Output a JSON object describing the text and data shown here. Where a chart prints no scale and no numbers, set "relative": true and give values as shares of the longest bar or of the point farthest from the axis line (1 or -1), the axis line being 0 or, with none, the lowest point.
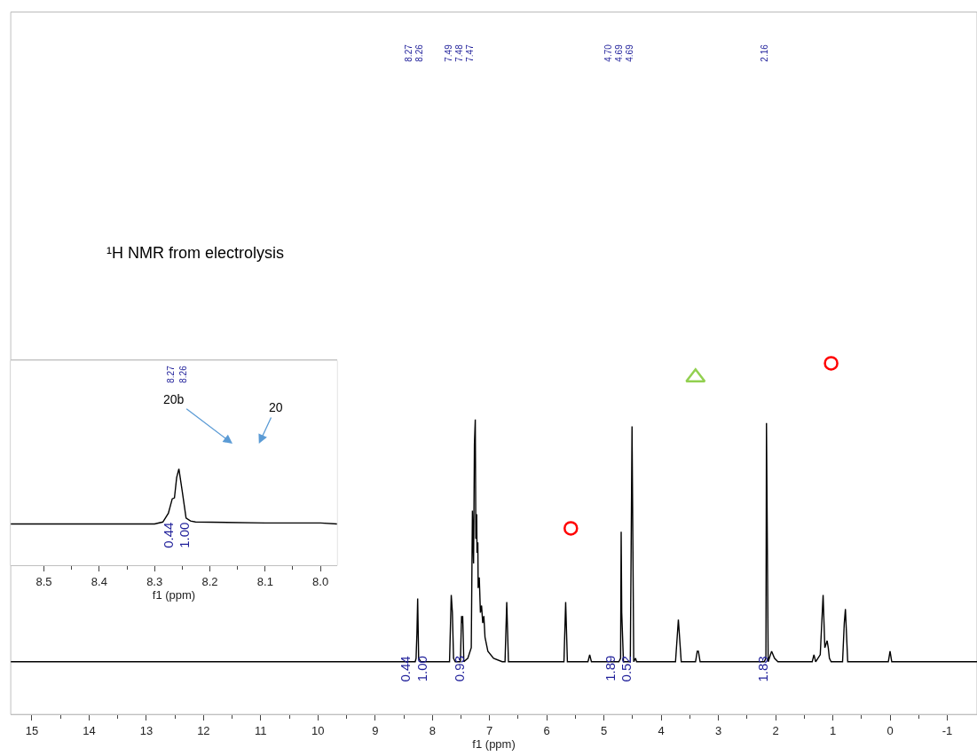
{
  "chart_data": [
    {
      "type": "line",
      "relative": true,
      "xlabel": "f1 (ppm)",
      "xlim": [
        15.37,
        -1.52
      ],
      "xticks": [
        15,
        14,
        13,
        12,
        11,
        10,
        9,
        8,
        7,
        6,
        5,
        4,
        3,
        2,
        1,
        0,
        -1
      ],
      "grid": false,
      "series": [
        {
          "marker": "none",
          "line_style": "solid",
          "color": "#000000",
          "x": [
            15.37,
            8.3,
            8.285,
            8.27,
            8.257,
            8.24,
            8.2,
            7.7,
            7.67,
            7.65,
            7.63,
            7.6,
            7.51,
            7.49,
            7.48,
            7.47,
            7.45,
            7.38,
            7.32,
            7.3,
            7.28,
            7.265,
            7.25,
            7.24,
            7.225,
            7.22,
            7.205,
            7.2,
            7.18,
            7.16,
            7.14,
            7.12,
            7.1,
            7.08,
            7.03,
            6.93,
            6.78,
            6.73,
            6.7,
            6.67,
            6.58,
            5.7,
            5.67,
            5.64,
            5.28,
            5.25,
            5.22,
            4.74,
            4.71,
            4.7,
            4.69,
            4.66,
            4.54,
            4.51,
            4.48,
            4.45,
            4.43,
            4.38,
            3.75,
            3.7,
            3.65,
            3.4,
            3.37,
            3.35,
            3.32,
            2.2,
            2.17,
            2.16,
            2.13,
            2.07,
            2.02,
            1.96,
            1.36,
            1.33,
            1.3,
            1.22,
            1.17,
            1.14,
            1.1,
            1.08,
            1.06,
            1.03,
            0.83,
            0.8,
            0.78,
            0.74,
            0.03,
            0.0,
            -0.03,
            -1.52
          ],
          "values": [
            0.15,
            0.15,
            0.16,
            0.23,
            0.33,
            0.16,
            0.15,
            0.15,
            0.34,
            0.29,
            0.16,
            0.15,
            0.15,
            0.28,
            0.26,
            0.28,
            0.15,
            0.16,
            0.19,
            0.58,
            0.43,
            0.77,
            0.84,
            0.5,
            0.57,
            0.46,
            0.49,
            0.36,
            0.39,
            0.29,
            0.31,
            0.26,
            0.28,
            0.22,
            0.18,
            0.16,
            0.15,
            0.15,
            0.32,
            0.15,
            0.15,
            0.15,
            0.32,
            0.15,
            0.15,
            0.17,
            0.15,
            0.15,
            0.16,
            0.52,
            0.29,
            0.15,
            0.15,
            0.82,
            0.15,
            0.16,
            0.15,
            0.15,
            0.15,
            0.27,
            0.15,
            0.15,
            0.18,
            0.18,
            0.15,
            0.15,
            0.16,
            0.83,
            0.15,
            0.18,
            0.16,
            0.15,
            0.15,
            0.17,
            0.15,
            0.17,
            0.34,
            0.19,
            0.21,
            0.19,
            0.16,
            0.15,
            0.15,
            0.26,
            0.3,
            0.15,
            0.15,
            0.18,
            0.15,
            0.15
          ]
        },
        {
          "type": "scatter",
          "marker": "circle",
          "color": "#ff0000",
          "x": [
            5.58,
            1.03
          ],
          "values": [
            0.53,
            1.0
          ]
        },
        {
          "type": "scatter",
          "marker": "triangle",
          "color": "#92d050",
          "x": [
            3.4
          ],
          "values": [
            0.96
          ]
        }
      ],
      "annotations": [
        "¹H NMR from electrolysis",
        "8.27",
        "8.26",
        "7.49",
        "7.48",
        "7.47",
        "4.70",
        "4.69",
        "4.69",
        "2.16",
        "0.44",
        "1.00",
        "0.93",
        "1.89",
        "0.52",
        "1.83"
      ]
    },
    {
      "type": "line",
      "relative": true,
      "xlabel": "f1 (ppm)",
      "xlim": [
        8.56,
        7.97
      ],
      "xticks": [
        8.5,
        8.4,
        8.3,
        8.2,
        8.1,
        {
          "value": 8.0,
          "label": "8.0"
        }
      ],
      "grid": false,
      "series": [
        {
          "marker": "none",
          "line_style": "solid",
          "color": "#000000",
          "x": [
            8.56,
            8.3,
            8.285,
            8.275,
            8.268,
            8.264,
            8.26,
            8.256,
            8.25,
            8.243,
            8.235,
            8.226,
            8.1,
            8.0,
            7.97
          ],
          "values": [
            0.43,
            0.43,
            0.45,
            0.54,
            0.69,
            0.7,
            0.91,
            1.0,
            0.77,
            0.49,
            0.46,
            0.45,
            0.44,
            0.44,
            0.43
          ]
        }
      ],
      "annotations": [
        "8.27",
        "8.26",
        "0.44",
        "1.00",
        "20b",
        "20"
      ]
    }
  ]
}
